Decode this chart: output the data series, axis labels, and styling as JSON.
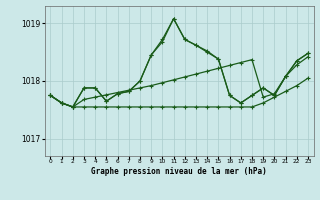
{
  "title": "Graphe pression niveau de la mer (hPa)",
  "xlabel_ticks": [
    0,
    1,
    2,
    3,
    4,
    5,
    6,
    7,
    8,
    9,
    10,
    11,
    12,
    13,
    14,
    15,
    16,
    17,
    18,
    19,
    20,
    21,
    22,
    23
  ],
  "ylim": [
    1016.7,
    1019.3
  ],
  "yticks": [
    1017,
    1018,
    1019
  ],
  "bg_color": "#cce8e8",
  "grid_color": "#aacccc",
  "line_color": "#1a5c1a",
  "s1": [
    1017.75,
    1017.62,
    1017.55,
    1017.55,
    1017.55,
    1017.55,
    1017.55,
    1017.55,
    1017.55,
    1017.55,
    1017.55,
    1017.55,
    1017.55,
    1017.55,
    1017.55,
    1017.55,
    1017.55,
    1017.55,
    1017.55,
    1017.62,
    1017.72,
    1017.82,
    1017.92,
    1018.05
  ],
  "s2": [
    1017.75,
    1017.62,
    1017.55,
    1017.68,
    1017.72,
    1017.76,
    1017.8,
    1017.84,
    1017.88,
    1017.92,
    1017.97,
    1018.02,
    1018.07,
    1018.12,
    1018.17,
    1018.22,
    1018.27,
    1018.32,
    1018.37,
    1017.72,
    1017.78,
    1018.08,
    1018.28,
    1018.42
  ],
  "s3": [
    1017.75,
    1017.62,
    1017.55,
    1017.88,
    1017.88,
    1017.65,
    1017.78,
    1017.82,
    1018.0,
    1018.45,
    1018.72,
    1019.08,
    1018.72,
    1018.62,
    1018.52,
    1018.38,
    1017.75,
    1017.62,
    1017.75,
    1017.88,
    1017.75,
    1018.08,
    1018.35,
    1018.48
  ],
  "s4": [
    1017.75,
    1017.62,
    1017.55,
    1017.88,
    1017.88,
    1017.65,
    1017.78,
    1017.82,
    1018.0,
    1018.45,
    1018.68,
    1019.08,
    1018.72,
    1018.62,
    1018.5,
    1018.38,
    1017.75,
    1017.62,
    1017.75,
    1017.88,
    1017.75,
    1018.08,
    1018.35,
    1018.48
  ]
}
